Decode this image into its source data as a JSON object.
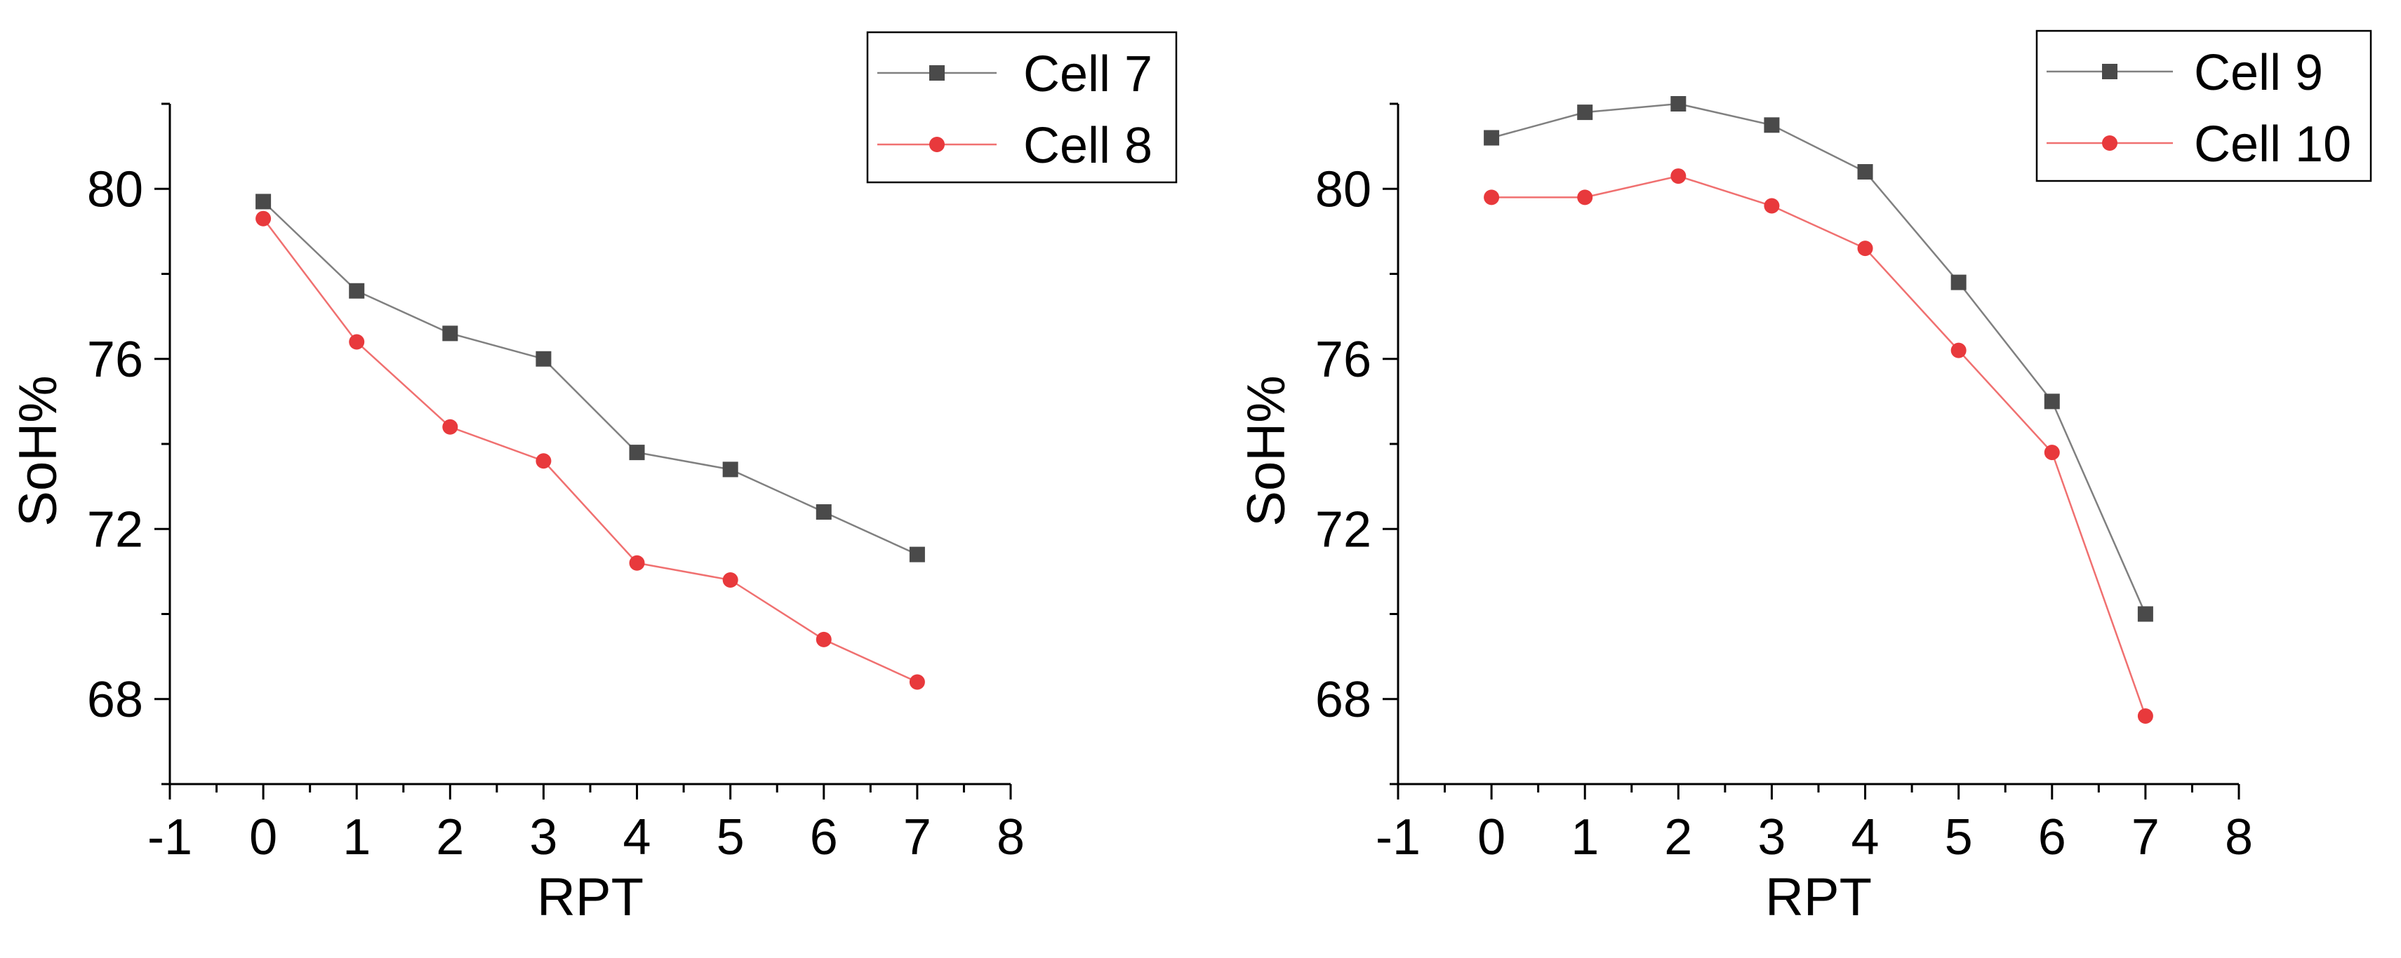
{
  "chart_data": [
    {
      "type": "line",
      "title": "",
      "xlabel": "RPT",
      "ylabel": "SoH%",
      "xlim": [
        -1,
        8
      ],
      "ylim": [
        66,
        82
      ],
      "x_ticks": [
        -1,
        0,
        1,
        2,
        3,
        4,
        5,
        6,
        7,
        8
      ],
      "y_ticks": [
        68,
        72,
        76,
        80
      ],
      "x": [
        0,
        1,
        2,
        3,
        4,
        5,
        6,
        7
      ],
      "legend_position": "top-right",
      "series": [
        {
          "name": "Cell 7",
          "marker": "square",
          "color": "#4a4a4a",
          "values": [
            79.7,
            77.6,
            76.6,
            76.0,
            73.8,
            73.4,
            72.4,
            71.4
          ]
        },
        {
          "name": "Cell 8",
          "marker": "circle",
          "color": "#e8393c",
          "values": [
            79.3,
            76.4,
            74.4,
            73.6,
            71.2,
            70.8,
            69.4,
            68.4
          ]
        }
      ]
    },
    {
      "type": "line",
      "title": "",
      "xlabel": "RPT",
      "ylabel": "SoH%",
      "xlim": [
        -1,
        8
      ],
      "ylim": [
        66,
        82
      ],
      "x_ticks": [
        -1,
        0,
        1,
        2,
        3,
        4,
        5,
        6,
        7,
        8
      ],
      "y_ticks": [
        68,
        72,
        76,
        80
      ],
      "x": [
        0,
        1,
        2,
        3,
        4,
        5,
        6,
        7
      ],
      "legend_position": "top-right",
      "series": [
        {
          "name": "Cell 9",
          "marker": "square",
          "color": "#4a4a4a",
          "values": [
            81.2,
            81.8,
            82.0,
            81.5,
            80.4,
            77.8,
            75.0,
            70.0
          ]
        },
        {
          "name": "Cell 10",
          "marker": "circle",
          "color": "#e8393c",
          "values": [
            79.8,
            79.8,
            80.3,
            79.6,
            78.6,
            76.2,
            73.8,
            67.6
          ]
        }
      ]
    }
  ]
}
